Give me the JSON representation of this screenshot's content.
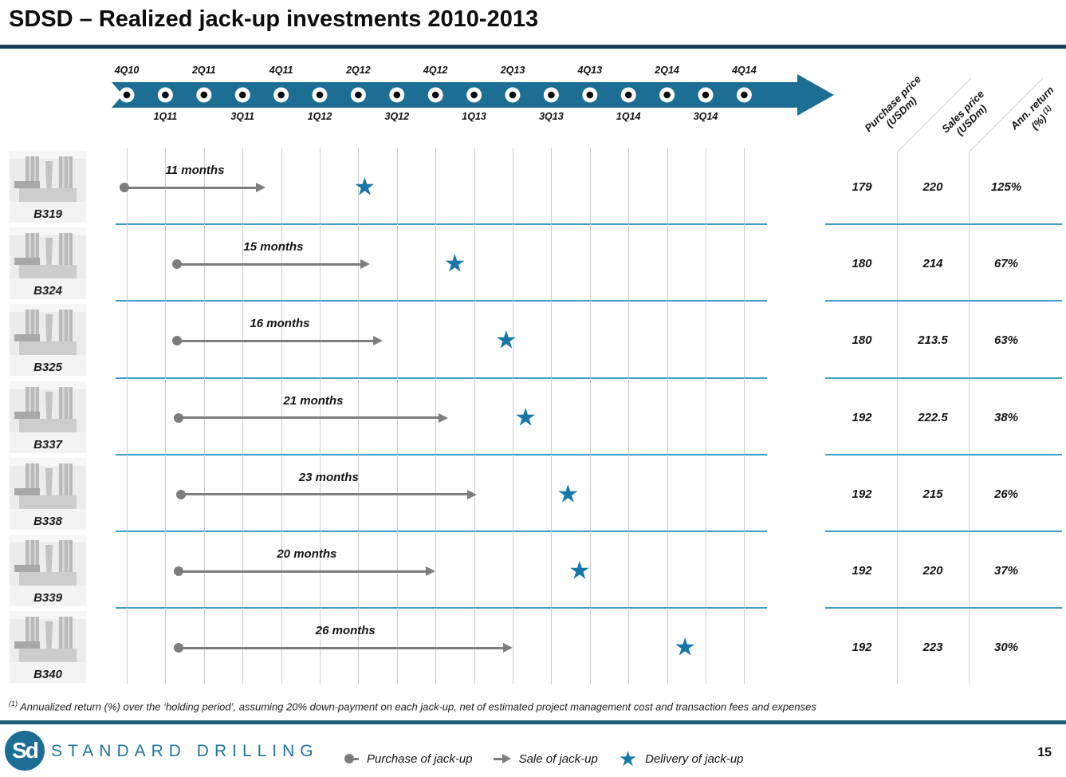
{
  "title": "SDSD – Realized jack-up investments 2010-2013",
  "page_number": "15",
  "brand": {
    "monogram": "Sd",
    "name": "STANDARD DRILLING"
  },
  "footnote": {
    "sup": "(1)",
    "text": " Annualized return (%) over the ‘holding period’, assuming 20% down-payment on each jack-up, net of estimated project management cost and transaction fees and expenses"
  },
  "legend": [
    {
      "icon": "purchase-dot",
      "label": "Purchase of jack-up"
    },
    {
      "icon": "sale-arrow",
      "label": "Sale of jack-up"
    },
    {
      "icon": "delivery-star",
      "label": "Delivery of jack-up"
    }
  ],
  "table": {
    "columns": [
      {
        "line1": "Purchase price",
        "line2": "(USDm)",
        "sup": ""
      },
      {
        "line1": "Sales price",
        "line2": "(USDm)",
        "sup": ""
      },
      {
        "line1": "Ann. return",
        "line2": "(%)",
        "sup": "(1)"
      }
    ]
  },
  "colors": {
    "timeline_teal": "#1d6e94",
    "star_blue": "#1778a8",
    "separator_blue": "#41a0ca",
    "title_rule": "#1f3c5a",
    "footer_rule": "#1e5e7c",
    "marker_gray": "#7d7d7d",
    "gridline_gray": "#cdcdcd"
  },
  "chart_data": {
    "type": "timeline-gantt",
    "title": "Realized jack-up investments 2010-2013",
    "x_axis": {
      "unit": "quarter",
      "ticks": [
        "4Q10",
        "1Q11",
        "2Q11",
        "3Q11",
        "4Q11",
        "1Q12",
        "2Q12",
        "3Q12",
        "4Q12",
        "1Q13",
        "2Q13",
        "3Q13",
        "4Q13",
        "1Q14",
        "2Q14",
        "3Q14",
        "4Q14"
      ]
    },
    "rows": [
      {
        "rig": "B319",
        "duration_label": "11 months",
        "duration_months": 11,
        "purchase_month": -0.2,
        "delivery_month": 18.5,
        "purchase_price_usdm": "179",
        "sales_price_usdm": "220",
        "ann_return": "125%"
      },
      {
        "rig": "B324",
        "duration_label": "15 months",
        "duration_months": 15,
        "purchase_month": 3.9,
        "delivery_month": 25.5,
        "purchase_price_usdm": "180",
        "sales_price_usdm": "214",
        "ann_return": "67%"
      },
      {
        "rig": "B325",
        "duration_label": "16 months",
        "duration_months": 16,
        "purchase_month": 3.9,
        "delivery_month": 29.5,
        "purchase_price_usdm": "180",
        "sales_price_usdm": "213.5",
        "ann_return": "63%"
      },
      {
        "rig": "B337",
        "duration_label": "21 months",
        "duration_months": 21,
        "purchase_month": 4.0,
        "delivery_month": 31.0,
        "purchase_price_usdm": "192",
        "sales_price_usdm": "222.5",
        "ann_return": "38%"
      },
      {
        "rig": "B338",
        "duration_label": "23 months",
        "duration_months": 23,
        "purchase_month": 4.2,
        "delivery_month": 34.3,
        "purchase_price_usdm": "192",
        "sales_price_usdm": "215",
        "ann_return": "26%"
      },
      {
        "rig": "B339",
        "duration_label": "20 months",
        "duration_months": 20,
        "purchase_month": 4.0,
        "delivery_month": 35.2,
        "purchase_price_usdm": "192",
        "sales_price_usdm": "220",
        "ann_return": "37%"
      },
      {
        "rig": "B340",
        "duration_label": "26 months",
        "duration_months": 26,
        "purchase_month": 4.0,
        "delivery_month": 43.4,
        "purchase_price_usdm": "192",
        "sales_price_usdm": "223",
        "ann_return": "30%"
      }
    ]
  }
}
